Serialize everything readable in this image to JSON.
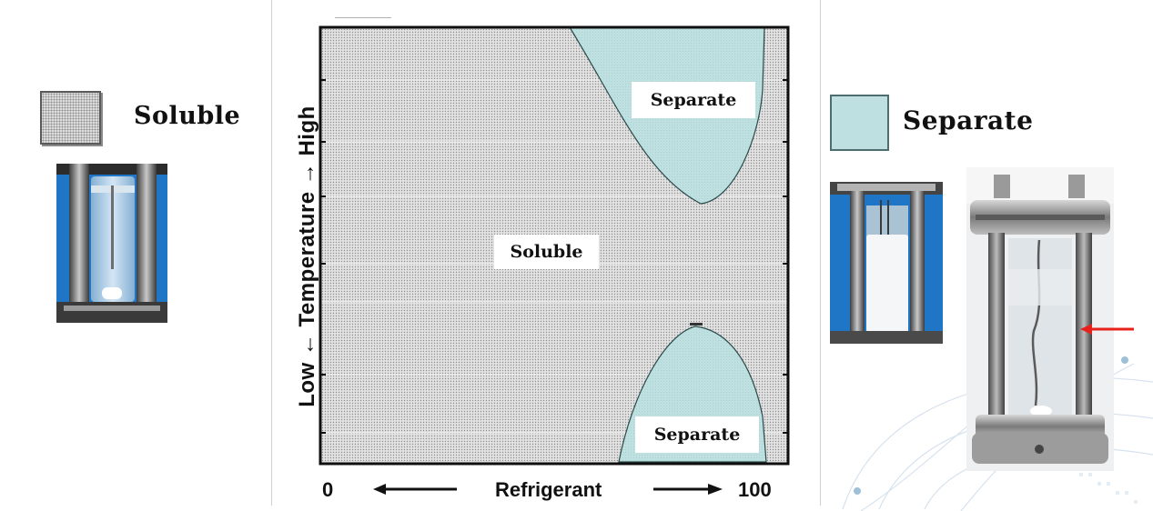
{
  "legend": {
    "soluble": {
      "label": "Soluble",
      "color": "#e2e2e2"
    },
    "separate": {
      "label": "Separate",
      "color": "#bfe0e0"
    }
  },
  "diagram": {
    "y_axis": {
      "label": "Low  ←  Temperature  →  High"
    },
    "x_axis": {
      "label": "Refrigerant",
      "min_label": "0",
      "max_label": "100"
    },
    "regions": {
      "separate_top": "Separate",
      "soluble": "Soluble",
      "separate_bottom": "Separate"
    },
    "colors": {
      "soluble_fill": "#e2e2e2",
      "separate_fill": "#bfe0e0",
      "outline": "#1a1a1a"
    }
  },
  "photos": {
    "soluble_cell": "photo-icon",
    "separate_cell_small": "photo-icon",
    "separate_cell_large": "photo-icon"
  },
  "annotations": {
    "interface_marker": {
      "color": "#e8201c"
    }
  }
}
